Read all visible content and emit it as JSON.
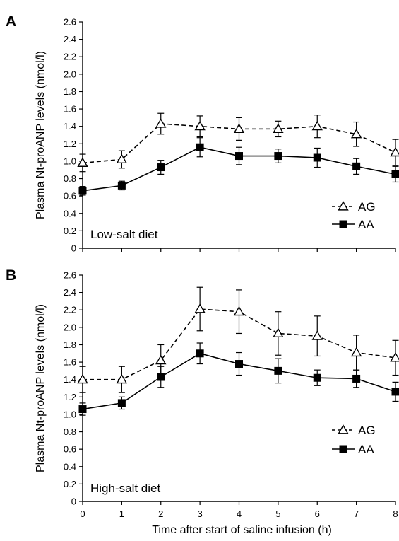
{
  "chart_data": [
    {
      "panel_label": "A",
      "type": "line",
      "annotation": "Low-salt diet",
      "xlabel": "",
      "ylabel": "Plasma Nt-proANP levels (nmol/l)",
      "x": [
        0,
        1,
        2,
        3,
        4,
        5,
        6,
        7,
        8
      ],
      "xlim": [
        0,
        8
      ],
      "ylim": [
        0,
        2.6
      ],
      "yticks": [
        0,
        0.2,
        0.4,
        0.6,
        0.8,
        1.0,
        1.2,
        1.4,
        1.6,
        1.8,
        2.0,
        2.2,
        2.4,
        2.6
      ],
      "ytick_labels": [
        "0",
        "0.2",
        "0.4",
        "0.6",
        "0.8",
        "1.0",
        "1.2",
        "1.4",
        "1.6",
        "1.8",
        "2.0",
        "2.2",
        "2.4",
        "2.6"
      ],
      "xtick_labels": [
        "",
        "",
        "",
        "",
        "",
        "",
        "",
        "",
        ""
      ],
      "legend_position": "bottom-right",
      "series": [
        {
          "name": "AG",
          "marker": "open-triangle",
          "line": "dashed",
          "values": [
            0.98,
            1.02,
            1.43,
            1.4,
            1.37,
            1.37,
            1.4,
            1.31,
            1.1
          ],
          "errors": [
            0.1,
            0.1,
            0.12,
            0.12,
            0.13,
            0.09,
            0.13,
            0.14,
            0.15
          ]
        },
        {
          "name": "AA",
          "marker": "filled-square",
          "line": "solid",
          "values": [
            0.66,
            0.72,
            0.93,
            1.16,
            1.06,
            1.06,
            1.04,
            0.94,
            0.85
          ],
          "errors": [
            0.05,
            0.05,
            0.08,
            0.11,
            0.1,
            0.08,
            0.11,
            0.09,
            0.09
          ]
        }
      ]
    },
    {
      "panel_label": "B",
      "type": "line",
      "annotation": "High-salt diet",
      "xlabel": "Time after start of saline infusion (h)",
      "ylabel": "Plasma Nt-proANP levels (nmol/l)",
      "x": [
        0,
        1,
        2,
        3,
        4,
        5,
        6,
        7,
        8
      ],
      "xlim": [
        0,
        8
      ],
      "ylim": [
        0,
        2.6
      ],
      "yticks": [
        0,
        0.2,
        0.4,
        0.6,
        0.8,
        1.0,
        1.2,
        1.4,
        1.6,
        1.8,
        2.0,
        2.2,
        2.4,
        2.6
      ],
      "ytick_labels": [
        "0",
        "0.2",
        "0.4",
        "0.6",
        "0.8",
        "1.0",
        "1.2",
        "1.4",
        "1.6",
        "1.8",
        "2.0",
        "2.2",
        "2.4",
        "2.6"
      ],
      "xtick_labels": [
        "0",
        "1",
        "2",
        "3",
        "4",
        "5",
        "6",
        "7",
        "8"
      ],
      "legend_position": "right",
      "series": [
        {
          "name": "AG",
          "marker": "open-triangle",
          "line": "dashed",
          "values": [
            1.4,
            1.4,
            1.62,
            2.21,
            2.18,
            1.93,
            1.9,
            1.71,
            1.65
          ],
          "errors": [
            0.15,
            0.15,
            0.18,
            0.25,
            0.25,
            0.25,
            0.23,
            0.2,
            0.2
          ]
        },
        {
          "name": "AA",
          "marker": "filled-square",
          "line": "solid",
          "values": [
            1.06,
            1.13,
            1.43,
            1.7,
            1.58,
            1.5,
            1.42,
            1.41,
            1.26
          ],
          "errors": [
            0.07,
            0.07,
            0.12,
            0.12,
            0.13,
            0.14,
            0.09,
            0.1,
            0.11
          ]
        }
      ]
    }
  ]
}
